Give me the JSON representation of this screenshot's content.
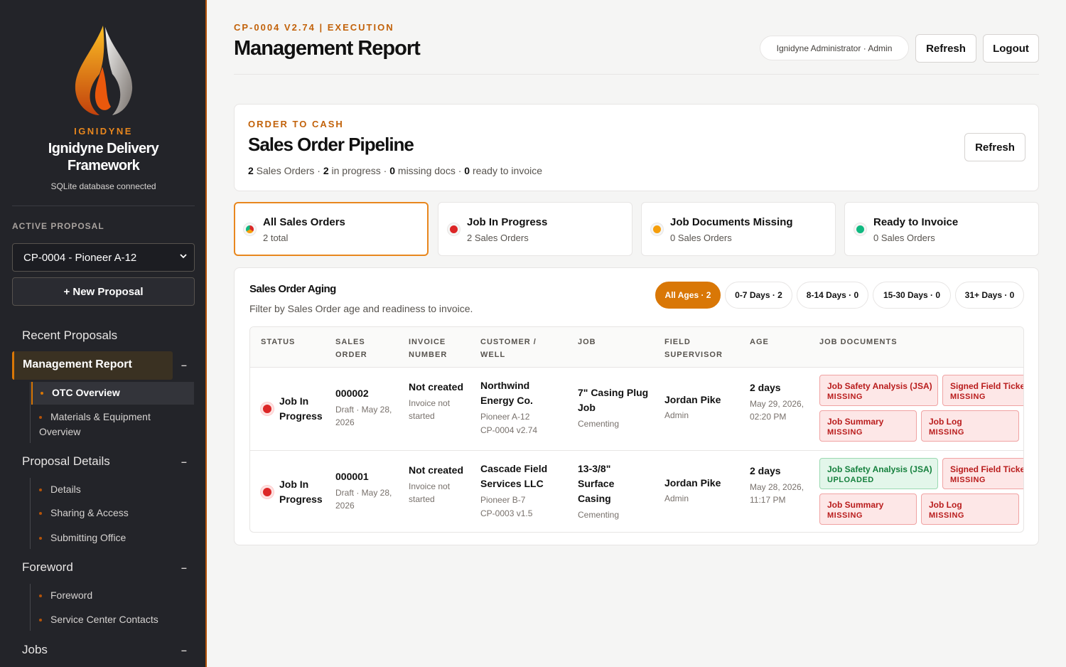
{
  "sidebar": {
    "brand_kicker": "IGNIDYNE",
    "brand_name": "Ignidyne Delivery Framework",
    "db_status": "SQLite database connected",
    "active_label": "ACTIVE PROPOSAL",
    "active_proposal": "CP-0004 - Pioneer A-12",
    "new_proposal": "+ New Proposal",
    "recent": "Recent Proposals",
    "management_report": "Management Report",
    "otc_overview": "OTC Overview",
    "materials": "Materials & Equipment Overview",
    "proposal_details": "Proposal Details",
    "details": "Details",
    "sharing": "Sharing & Access",
    "submitting": "Submitting Office",
    "foreword_head": "Foreword",
    "foreword": "Foreword",
    "service_contacts": "Service Center Contacts",
    "jobs": "Jobs",
    "collapse": "–"
  },
  "header": {
    "kicker": "CP-0004 V2.74 | EXECUTION",
    "title": "Management Report",
    "user": "Ignidyne Administrator · Admin",
    "refresh": "Refresh",
    "logout": "Logout"
  },
  "otc": {
    "kicker": "ORDER TO CASH",
    "title": "Sales Order Pipeline",
    "refresh": "Refresh",
    "summary": {
      "total": "2",
      "total_label": " Sales Orders · ",
      "progress": "2",
      "progress_label": " in progress · ",
      "missing": "0",
      "missing_label": " missing docs · ",
      "ready": "0",
      "ready_label": " ready to invoice"
    }
  },
  "stats": [
    {
      "title": "All Sales Orders",
      "sub": "2 total"
    },
    {
      "title": "Job In Progress",
      "sub": "2 Sales Orders"
    },
    {
      "title": "Job Documents Missing",
      "sub": "0 Sales Orders"
    },
    {
      "title": "Ready to Invoice",
      "sub": "0 Sales Orders"
    }
  ],
  "colors": {
    "accent": "#d97706",
    "red": "#dc2626",
    "amber": "#f59e0b",
    "green": "#10b981"
  },
  "aging": {
    "title": "Sales Order Aging",
    "sub": "Filter by Sales Order age and readiness to invoice.",
    "chips": [
      "All Ages · 2",
      "0-7 Days · 2",
      "8-14 Days · 0",
      "15-30 Days · 0",
      "31+ Days · 0"
    ],
    "columns": [
      "STATUS",
      "SALES ORDER",
      "INVOICE NUMBER",
      "CUSTOMER / WELL",
      "JOB",
      "FIELD SUPERVISOR",
      "AGE",
      "JOB DOCUMENTS"
    ],
    "rows": [
      {
        "status": "Job In Progress",
        "order": "000002",
        "order_sub": "Draft · May 28, 2026",
        "invoice": "Not created",
        "invoice_sub": "Invoice not started",
        "customer": "Northwind Energy Co.",
        "well": "Pioneer A-12",
        "proposal": "CP-0004 v2.74",
        "job": "7\" Casing Plug Job",
        "job_sub": "Cementing",
        "supervisor": "Jordan Pike",
        "supervisor_role": "Admin",
        "age": "2 days",
        "age_sub": "May 29, 2026, 02:20 PM",
        "docs": [
          {
            "name": "Job Safety Analysis (JSA)",
            "state": "MISSING"
          },
          {
            "name": "Signed Field Ticket",
            "state": "MISSING"
          },
          {
            "name": "Job Summary",
            "state": "MISSING"
          },
          {
            "name": "Job Log",
            "state": "MISSING"
          }
        ]
      },
      {
        "status": "Job In Progress",
        "order": "000001",
        "order_sub": "Draft · May 28, 2026",
        "invoice": "Not created",
        "invoice_sub": "Invoice not started",
        "customer": "Cascade Field Services LLC",
        "well": "Pioneer B-7",
        "proposal": "CP-0003 v1.5",
        "job": "13-3/8\" Surface Casing",
        "job_sub": "Cementing",
        "supervisor": "Jordan Pike",
        "supervisor_role": "Admin",
        "age": "2 days",
        "age_sub": "May 28, 2026, 11:17 PM",
        "docs": [
          {
            "name": "Job Safety Analysis (JSA)",
            "state": "UPLOADED"
          },
          {
            "name": "Signed Field Ticket",
            "state": "MISSING"
          },
          {
            "name": "Job Summary",
            "state": "MISSING"
          },
          {
            "name": "Job Log",
            "state": "MISSING"
          }
        ]
      }
    ]
  }
}
